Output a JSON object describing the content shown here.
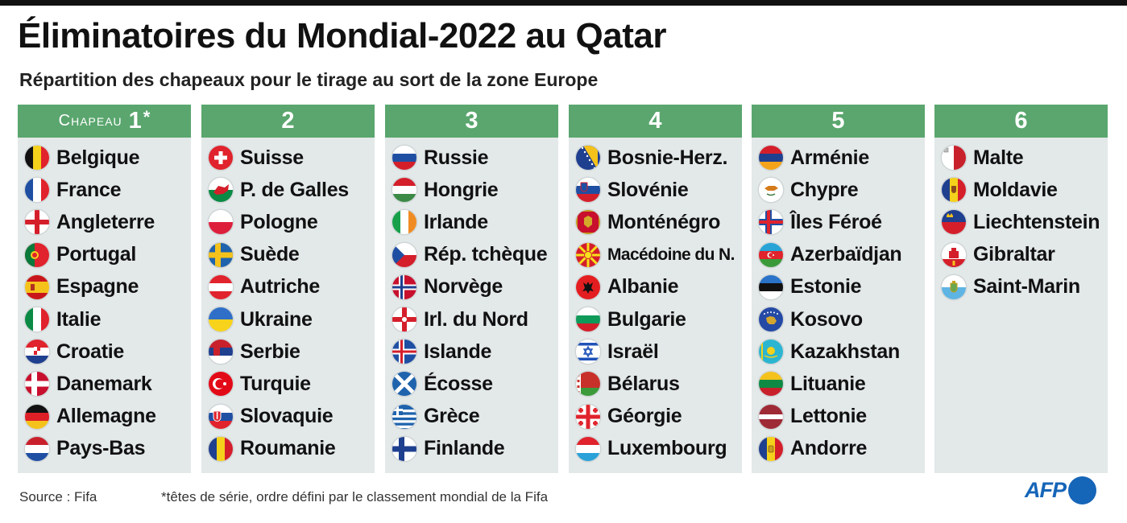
{
  "title": "Éliminatoires du Mondial-2022 au Qatar",
  "subtitle": "Répartition des chapeaux pour le tirage au sort de la zone Europe",
  "pot_word": "Chapeau",
  "pots": [
    {
      "number": "1",
      "star": "*",
      "countries": [
        {
          "name": "Belgique",
          "flag": "be"
        },
        {
          "name": "France",
          "flag": "fr"
        },
        {
          "name": "Angleterre",
          "flag": "en"
        },
        {
          "name": "Portugal",
          "flag": "pt"
        },
        {
          "name": "Espagne",
          "flag": "es"
        },
        {
          "name": "Italie",
          "flag": "it"
        },
        {
          "name": "Croatie",
          "flag": "hr"
        },
        {
          "name": "Danemark",
          "flag": "dk"
        },
        {
          "name": "Allemagne",
          "flag": "de"
        },
        {
          "name": "Pays-Bas",
          "flag": "nl"
        }
      ]
    },
    {
      "number": "2",
      "countries": [
        {
          "name": "Suisse",
          "flag": "ch"
        },
        {
          "name": "P. de Galles",
          "flag": "wa"
        },
        {
          "name": "Pologne",
          "flag": "pl"
        },
        {
          "name": "Suède",
          "flag": "se"
        },
        {
          "name": "Autriche",
          "flag": "at"
        },
        {
          "name": "Ukraine",
          "flag": "ua"
        },
        {
          "name": "Serbie",
          "flag": "rs"
        },
        {
          "name": "Turquie",
          "flag": "tr"
        },
        {
          "name": "Slovaquie",
          "flag": "sk"
        },
        {
          "name": "Roumanie",
          "flag": "ro"
        }
      ]
    },
    {
      "number": "3",
      "countries": [
        {
          "name": "Russie",
          "flag": "ru"
        },
        {
          "name": "Hongrie",
          "flag": "hu"
        },
        {
          "name": "Irlande",
          "flag": "ie"
        },
        {
          "name": "Rép. tchèque",
          "flag": "cz"
        },
        {
          "name": "Norvège",
          "flag": "no"
        },
        {
          "name": "Irl. du Nord",
          "flag": "ni"
        },
        {
          "name": "Islande",
          "flag": "is"
        },
        {
          "name": "Écosse",
          "flag": "sc"
        },
        {
          "name": "Grèce",
          "flag": "gr"
        },
        {
          "name": "Finlande",
          "flag": "fi"
        }
      ]
    },
    {
      "number": "4",
      "countries": [
        {
          "name": "Bosnie-Herz.",
          "flag": "ba"
        },
        {
          "name": "Slovénie",
          "flag": "si"
        },
        {
          "name": "Monténégro",
          "flag": "me"
        },
        {
          "name": "Macédoine du N.",
          "flag": "mk"
        },
        {
          "name": "Albanie",
          "flag": "al"
        },
        {
          "name": "Bulgarie",
          "flag": "bg"
        },
        {
          "name": "Israël",
          "flag": "il"
        },
        {
          "name": "Bélarus",
          "flag": "by"
        },
        {
          "name": "Géorgie",
          "flag": "ge"
        },
        {
          "name": "Luxembourg",
          "flag": "lu"
        }
      ]
    },
    {
      "number": "5",
      "countries": [
        {
          "name": "Arménie",
          "flag": "am"
        },
        {
          "name": "Chypre",
          "flag": "cy"
        },
        {
          "name": "Îles Féroé",
          "flag": "fo"
        },
        {
          "name": "Azerbaïdjan",
          "flag": "az"
        },
        {
          "name": "Estonie",
          "flag": "ee"
        },
        {
          "name": "Kosovo",
          "flag": "xk"
        },
        {
          "name": "Kazakhstan",
          "flag": "kz"
        },
        {
          "name": "Lituanie",
          "flag": "lt"
        },
        {
          "name": "Lettonie",
          "flag": "lv"
        },
        {
          "name": "Andorre",
          "flag": "ad"
        }
      ]
    },
    {
      "number": "6",
      "countries": [
        {
          "name": "Malte",
          "flag": "mt"
        },
        {
          "name": "Moldavie",
          "flag": "md"
        },
        {
          "name": "Liechtenstein",
          "flag": "li"
        },
        {
          "name": "Gibraltar",
          "flag": "gi"
        },
        {
          "name": "Saint-Marin",
          "flag": "sm"
        }
      ]
    }
  ],
  "footer": {
    "source": "Source : Fifa",
    "note": "*têtes de série, ordre défini par le classement mondial de la Fifa",
    "logo": "AFP"
  },
  "colors": {
    "header_green": "#5aa66e",
    "column_bg": "#e3e8e9",
    "afp_blue": "#1565b8"
  }
}
